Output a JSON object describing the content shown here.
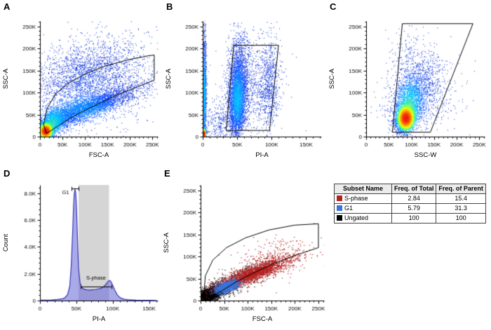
{
  "figure": {
    "background": "#ffffff"
  },
  "chart_data": {
    "A": {
      "letter": "A",
      "type": "density-scatter",
      "x_axis": {
        "label": "FSC-A",
        "range": [
          0,
          262
        ],
        "tick_values": [
          0,
          50,
          100,
          150,
          200,
          250
        ],
        "tick_labels": [
          "0",
          "50K",
          "100K",
          "150K",
          "200K",
          "250K"
        ],
        "unit": "K"
      },
      "y_axis": {
        "label": "SSC-A",
        "range": [
          0,
          262
        ],
        "tick_values": [
          0,
          50,
          100,
          150,
          200,
          250
        ],
        "tick_labels": [
          "0",
          "50K",
          "100K",
          "150K",
          "200K",
          "250K"
        ],
        "unit": "K"
      },
      "gate": [
        [
          8,
          28
        ],
        [
          16,
          64
        ],
        [
          34,
          96
        ],
        [
          62,
          120
        ],
        [
          100,
          142
        ],
        [
          145,
          160
        ],
        [
          195,
          174
        ],
        [
          240,
          183
        ],
        [
          254,
          185
        ],
        [
          254,
          128
        ],
        [
          215,
          112
        ],
        [
          170,
          94
        ],
        [
          125,
          72
        ],
        [
          85,
          52
        ],
        [
          52,
          32
        ],
        [
          28,
          16
        ],
        [
          14,
          7
        ]
      ],
      "populations": [
        {
          "cx": 12,
          "cy": 13,
          "sx": 7,
          "sy": 8,
          "rho": 0.3,
          "n": 3000
        },
        {
          "cx": 28,
          "cy": 32,
          "sx": 16,
          "sy": 18,
          "rho": 0.4,
          "n": 1600
        },
        {
          "cx": 95,
          "cy": 62,
          "sx": 58,
          "sy": 24,
          "rho": 0.85,
          "n": 3800
        },
        {
          "cx": 95,
          "cy": 135,
          "sx": 58,
          "sy": 42,
          "rho": 0.35,
          "n": 2200
        },
        {
          "cx": 150,
          "cy": 120,
          "sx": 65,
          "sy": 55,
          "rho": 0.3,
          "n": 900
        }
      ]
    },
    "B": {
      "letter": "B",
      "type": "density-scatter",
      "x_axis": {
        "label": "PI-A",
        "range": [
          0,
          172
        ],
        "tick_values": [
          0,
          50,
          100,
          150
        ],
        "tick_labels": [
          "0",
          "50K",
          "100K",
          "150K"
        ],
        "unit": "K"
      },
      "y_axis": {
        "label": "SSC-A",
        "range": [
          0,
          262
        ],
        "tick_values": [
          0,
          50,
          100,
          150,
          200,
          250
        ],
        "tick_labels": [
          "0",
          "50K",
          "100K",
          "150K",
          "200K",
          "250K"
        ],
        "unit": "K"
      },
      "gate": [
        [
          34,
          14
        ],
        [
          45,
          207
        ],
        [
          110,
          207
        ],
        [
          97,
          14
        ]
      ],
      "populations": [
        {
          "cx": 1.5,
          "cy": 7,
          "sx": 1.2,
          "sy": 5,
          "rho": 0,
          "n": 900
        },
        {
          "cx": 2,
          "cy": 100,
          "sx": 1.5,
          "sy": 65,
          "rho": 0,
          "n": 1300
        },
        {
          "cx": 50,
          "cy": 80,
          "sx": 6,
          "sy": 38,
          "rho": 0.1,
          "n": 2600
        },
        {
          "cx": 52,
          "cy": 140,
          "sx": 8,
          "sy": 50,
          "rho": 0.1,
          "n": 1400
        },
        {
          "cx": 95,
          "cy": 115,
          "sx": 8,
          "sy": 50,
          "rho": 0.1,
          "n": 700
        },
        {
          "cx": 72,
          "cy": 110,
          "sx": 22,
          "sy": 55,
          "rho": 0.2,
          "n": 600
        },
        {
          "cx": 30,
          "cy": 35,
          "sx": 18,
          "sy": 25,
          "rho": 0.3,
          "n": 500
        }
      ]
    },
    "C": {
      "letter": "C",
      "type": "density-scatter",
      "x_axis": {
        "label": "SSC-W",
        "range": [
          0,
          262
        ],
        "tick_values": [
          0,
          50,
          100,
          150,
          200,
          250
        ],
        "tick_labels": [
          "0",
          "50K",
          "100K",
          "150K",
          "200K",
          "250K"
        ],
        "unit": "K"
      },
      "y_axis": {
        "label": "SSC-A",
        "range": [
          0,
          262
        ],
        "tick_values": [
          0,
          50,
          100,
          150,
          200,
          250
        ],
        "tick_labels": [
          "0",
          "50K",
          "100K",
          "150K",
          "200K",
          "250K"
        ],
        "unit": "K"
      },
      "gate": [
        [
          58,
          10
        ],
        [
          80,
          256
        ],
        [
          236,
          256
        ],
        [
          142,
          10
        ]
      ],
      "populations": [
        {
          "cx": 87,
          "cy": 42,
          "sx": 9,
          "sy": 13,
          "rho": 0.2,
          "n": 3800
        },
        {
          "cx": 93,
          "cy": 70,
          "sx": 16,
          "sy": 32,
          "rho": 0.3,
          "n": 1800
        },
        {
          "cx": 115,
          "cy": 110,
          "sx": 28,
          "sy": 42,
          "rho": 0.5,
          "n": 900
        },
        {
          "cx": 120,
          "cy": 70,
          "sx": 45,
          "sy": 35,
          "rho": 0.3,
          "n": 450
        },
        {
          "cx": 90,
          "cy": 165,
          "sx": 25,
          "sy": 45,
          "rho": 0.2,
          "n": 250
        }
      ]
    },
    "D": {
      "letter": "D",
      "type": "histogram",
      "x_axis": {
        "label": "PI-A",
        "range": [
          0,
          162
        ],
        "tick_values": [
          0,
          50,
          100,
          150
        ],
        "tick_labels": [
          "0",
          "50K",
          "100K",
          "150K"
        ],
        "unit": "K"
      },
      "y_axis": {
        "label": "Count",
        "range": [
          0,
          8.6
        ],
        "tick_values": [
          0,
          2,
          4,
          6,
          8
        ],
        "tick_labels": [
          "0",
          "2.0K",
          "4.0K",
          "6.0K",
          "8.0K"
        ],
        "unit": "K"
      },
      "fill_color": "rgba(100,100,218,0.55)",
      "line_color": "#3535b5",
      "shaded_region": {
        "x0": 53,
        "x1": 95,
        "color": "#d5d5d5"
      },
      "curve": [
        [
          0,
          0.03
        ],
        [
          8,
          0.04
        ],
        [
          16,
          0.05
        ],
        [
          24,
          0.08
        ],
        [
          30,
          0.12
        ],
        [
          34,
          0.2
        ],
        [
          38,
          0.45
        ],
        [
          41,
          1.1
        ],
        [
          43,
          2.6
        ],
        [
          45,
          5.2
        ],
        [
          46,
          6.8
        ],
        [
          47,
          7.9
        ],
        [
          48,
          8.25
        ],
        [
          49,
          8.1
        ],
        [
          50,
          7.2
        ],
        [
          51,
          5.6
        ],
        [
          52,
          3.9
        ],
        [
          53,
          2.4
        ],
        [
          55,
          1.35
        ],
        [
          57,
          1.0
        ],
        [
          60,
          0.85
        ],
        [
          64,
          0.8
        ],
        [
          68,
          0.78
        ],
        [
          72,
          0.8
        ],
        [
          76,
          0.82
        ],
        [
          80,
          0.86
        ],
        [
          84,
          0.92
        ],
        [
          88,
          1.05
        ],
        [
          91,
          1.25
        ],
        [
          94,
          1.45
        ],
        [
          96,
          1.5
        ],
        [
          98,
          1.38
        ],
        [
          100,
          1.12
        ],
        [
          103,
          0.75
        ],
        [
          106,
          0.45
        ],
        [
          109,
          0.27
        ],
        [
          112,
          0.16
        ],
        [
          116,
          0.1
        ],
        [
          120,
          0.07
        ],
        [
          126,
          0.05
        ],
        [
          132,
          0.03
        ],
        [
          140,
          0.02
        ],
        [
          150,
          0.015
        ],
        [
          160,
          0.01
        ]
      ],
      "markers": [
        {
          "label": "G1",
          "x0": 43.5,
          "x1": 53.5,
          "y": 8.32,
          "label_x": 40,
          "label_y": 7.9,
          "align": "right"
        },
        {
          "label": "S-phase",
          "x0": 56,
          "x1": 98,
          "y": 1.05,
          "label_x": 77,
          "label_y": 1.55,
          "align": "center"
        }
      ]
    },
    "E": {
      "letter": "E",
      "type": "scatter",
      "x_axis": {
        "label": "FSC-A",
        "range": [
          0,
          262
        ],
        "tick_values": [
          0,
          50,
          100,
          150,
          200,
          250
        ],
        "tick_labels": [
          "0",
          "50K",
          "100K",
          "150K",
          "200K",
          "250K"
        ],
        "unit": "K"
      },
      "y_axis": {
        "label": "SSC-A",
        "range": [
          0,
          262
        ],
        "tick_values": [
          0,
          50,
          100,
          150,
          200,
          250
        ],
        "tick_labels": [
          "0",
          "50K",
          "100K",
          "150K",
          "200K",
          "250K"
        ],
        "unit": "K"
      },
      "gate": [
        [
          7,
          14
        ],
        [
          10,
          56
        ],
        [
          26,
          92
        ],
        [
          55,
          120
        ],
        [
          95,
          142
        ],
        [
          145,
          160
        ],
        [
          200,
          171
        ],
        [
          250,
          174
        ],
        [
          250,
          120
        ],
        [
          205,
          104
        ],
        [
          160,
          86
        ],
        [
          115,
          64
        ],
        [
          75,
          42
        ],
        [
          45,
          22
        ],
        [
          22,
          8
        ],
        [
          10,
          4
        ]
      ],
      "series": [
        {
          "name": "Ungated",
          "color": "#000000",
          "clusters": [
            {
              "cx": 15,
              "cy": 13,
              "sx": 9,
              "sy": 7,
              "rho": 0.4,
              "n": 2400
            },
            {
              "cx": 35,
              "cy": 22,
              "sx": 18,
              "sy": 10,
              "rho": 0.6,
              "n": 900
            },
            {
              "cx": 70,
              "cy": 45,
              "sx": 40,
              "sy": 22,
              "rho": 0.8,
              "n": 500
            }
          ]
        },
        {
          "name": "S-phase",
          "color": "#b42121",
          "clusters": [
            {
              "cx": 110,
              "cy": 62,
              "sx": 38,
              "sy": 17,
              "rho": 0.85,
              "n": 2200
            },
            {
              "cx": 150,
              "cy": 88,
              "sx": 50,
              "sy": 28,
              "rho": 0.6,
              "n": 450
            }
          ]
        },
        {
          "name": "G1",
          "color": "#3b74d8",
          "clusters": [
            {
              "cx": 55,
              "cy": 32,
              "sx": 12,
              "sy": 7,
              "rho": 0.5,
              "n": 1300
            }
          ]
        }
      ]
    },
    "legend": {
      "type": "table",
      "headers": [
        "Subset Name",
        "Freq. of Total",
        "Freq. of Parent"
      ],
      "rows": [
        {
          "swatch": "#b42121",
          "name": "S-phase",
          "freq_total": "2.84",
          "freq_parent": "15.4"
        },
        {
          "swatch": "#3b74d8",
          "name": "G1",
          "freq_total": "5.79",
          "freq_parent": "31.3"
        },
        {
          "swatch": "#000000",
          "name": "Ungated",
          "freq_total": "100",
          "freq_parent": "100"
        }
      ]
    }
  }
}
